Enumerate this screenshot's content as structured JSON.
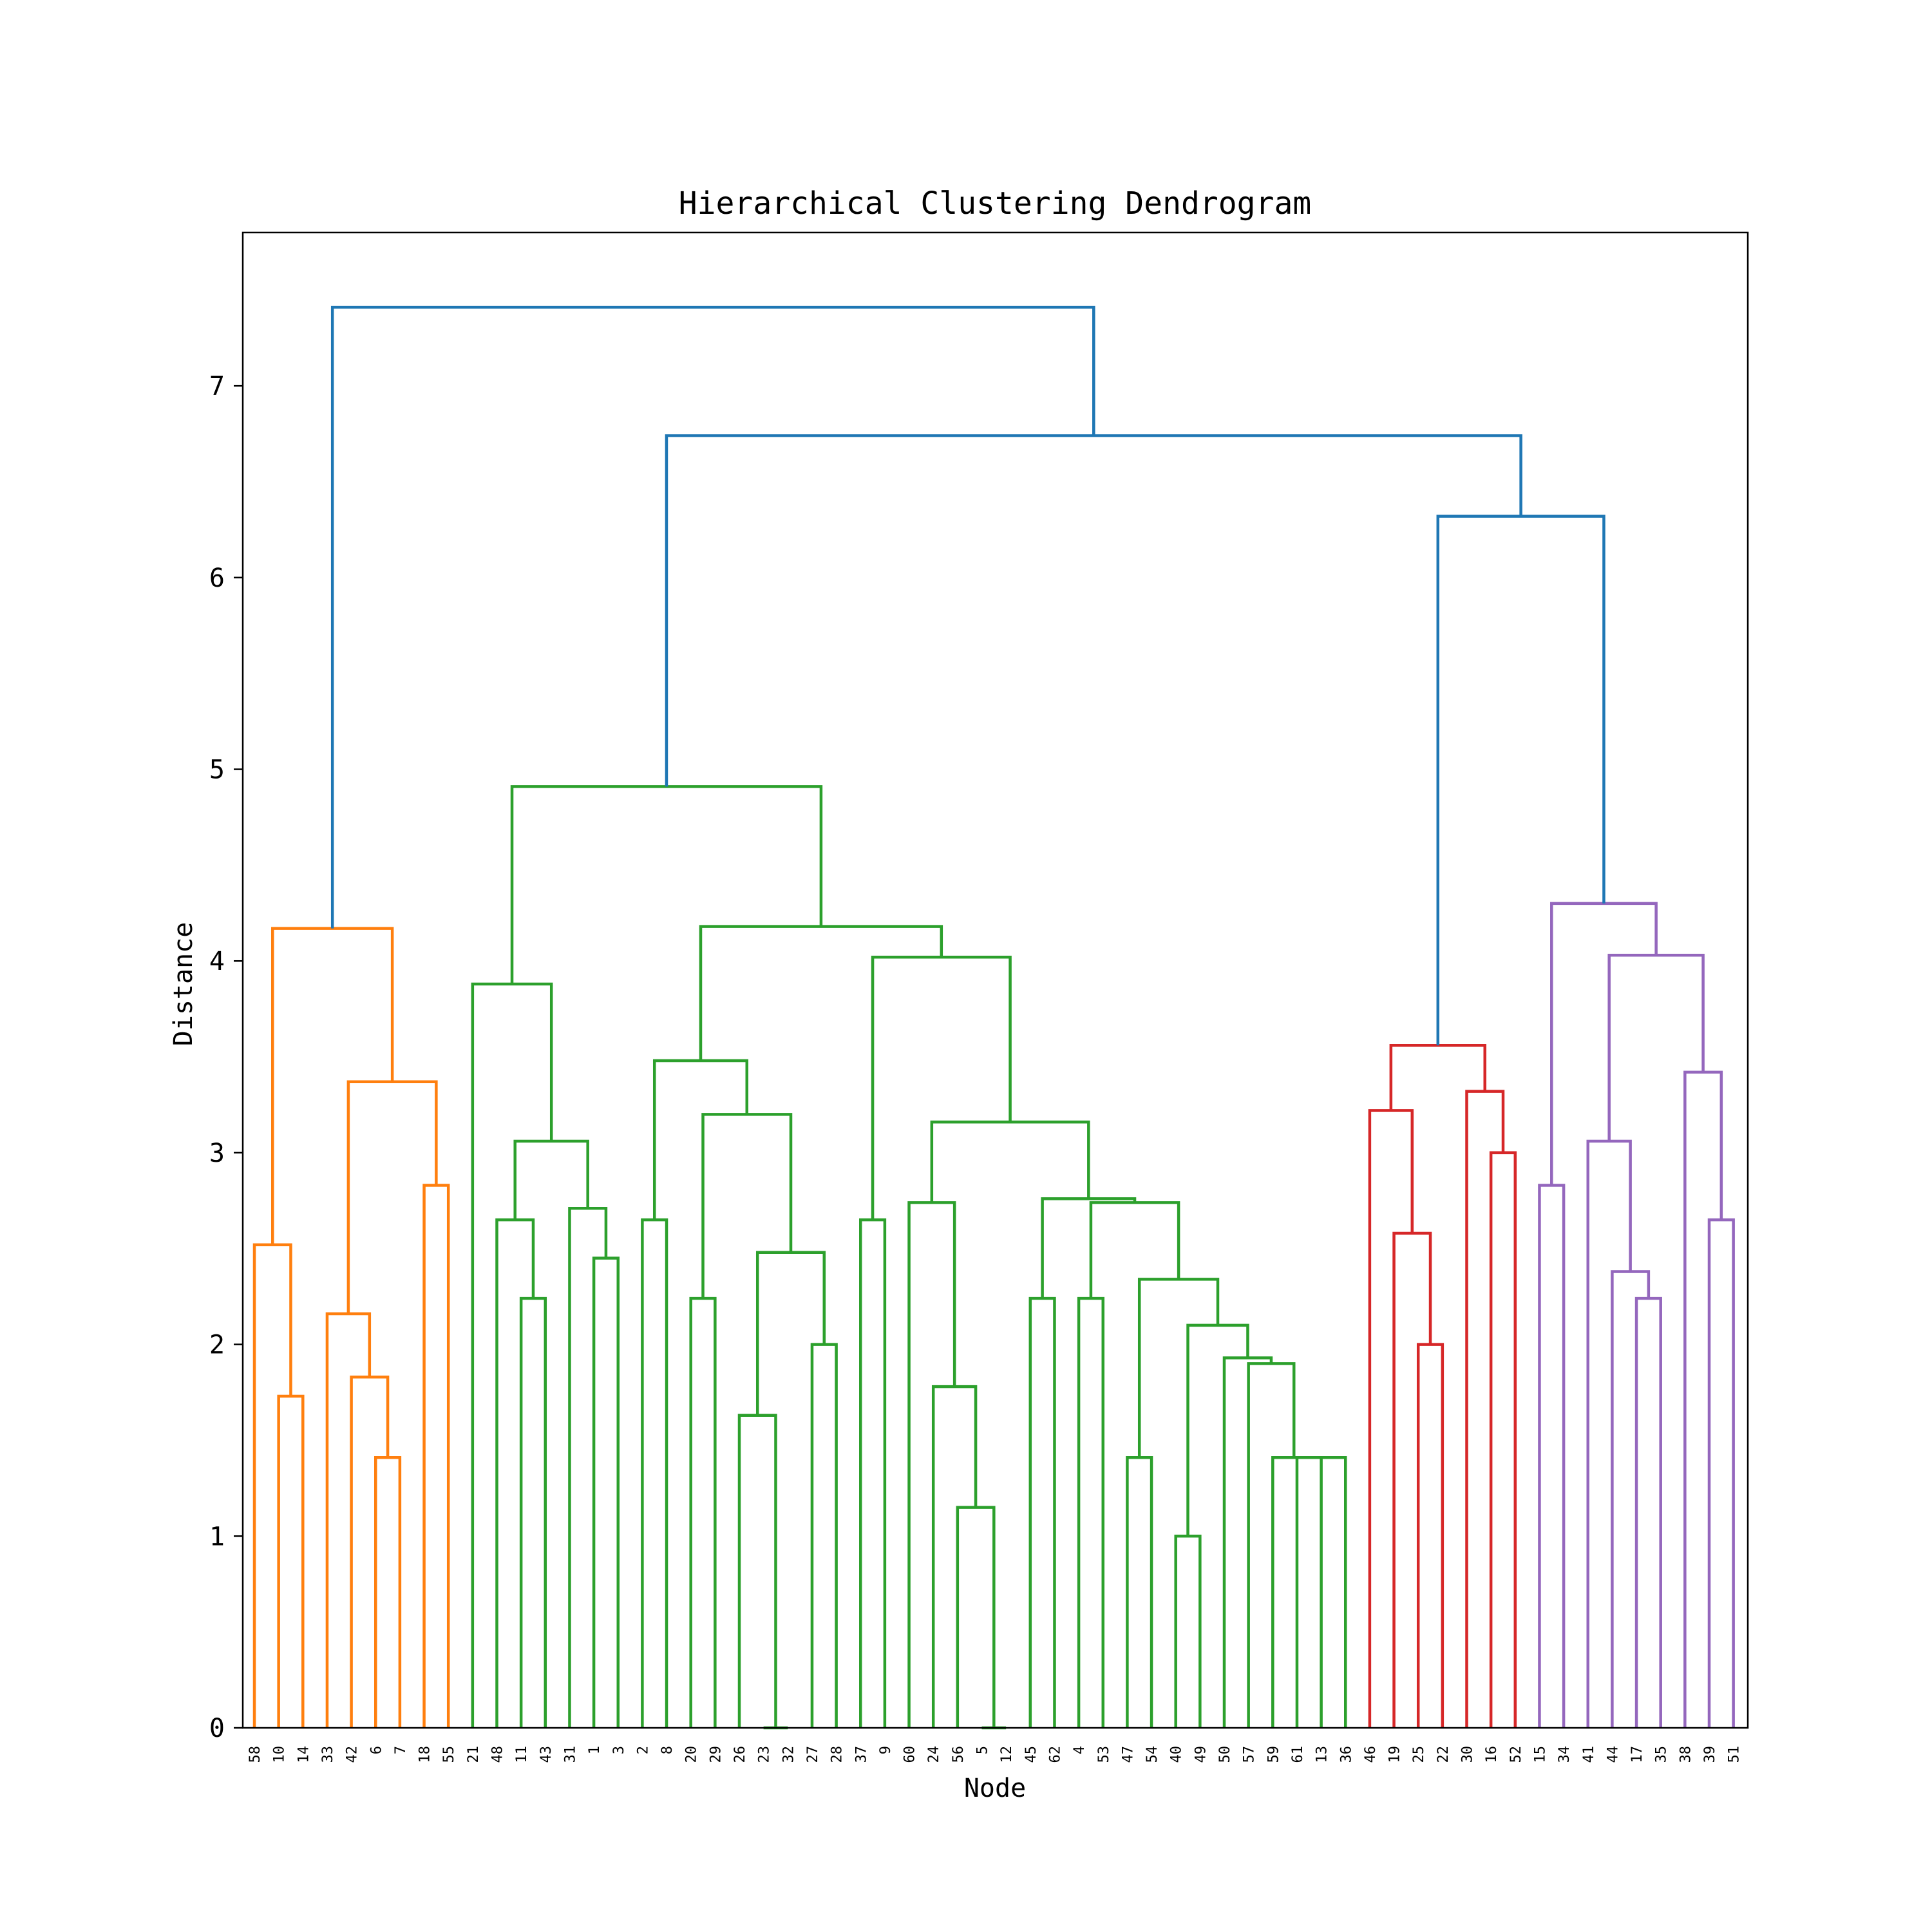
{
  "chart_data": {
    "type": "dendrogram",
    "title": "Hierarchical Clustering Dendrogram",
    "xlabel": "Node",
    "ylabel": "Distance",
    "ylim": [
      0,
      7.8
    ],
    "yticks": [
      0,
      1,
      2,
      3,
      4,
      5,
      6,
      7
    ],
    "leaves": [
      "58",
      "10",
      "14",
      "33",
      "42",
      "6",
      "7",
      "18",
      "55",
      "21",
      "48",
      "11",
      "43",
      "31",
      "1",
      "3",
      "2",
      "8",
      "20",
      "29",
      "26",
      "23",
      "32",
      "27",
      "28",
      "37",
      "9",
      "60",
      "24",
      "56",
      "5",
      "12",
      "45",
      "62",
      "4",
      "53",
      "47",
      "54",
      "40",
      "49",
      "50",
      "57",
      "59",
      "61",
      "13",
      "36",
      "46",
      "19",
      "25",
      "22",
      "30",
      "16",
      "52",
      "15",
      "34",
      "41",
      "44",
      "17",
      "35",
      "38",
      "39",
      "51"
    ],
    "colors": {
      "root": "#1f77b4",
      "orange": "#ff7f0e",
      "green": "#2ca02c",
      "red": "#d62728",
      "purple": "#9467bd"
    },
    "links": [
      {
        "left": 1,
        "right": 2,
        "distance": 1.73,
        "color": "orange"
      },
      {
        "left": 0,
        "right": "L1",
        "distance": 2.52,
        "color": "orange"
      },
      {
        "left": 5,
        "right": 6,
        "distance": 1.41,
        "color": "orange"
      },
      {
        "left": 4,
        "right": "L3",
        "distance": 1.83,
        "color": "orange"
      },
      {
        "left": 3,
        "right": "L4",
        "distance": 2.16,
        "color": "orange"
      },
      {
        "left": 7,
        "right": 8,
        "distance": 2.83,
        "color": "orange"
      },
      {
        "left": "L5",
        "right": "L6",
        "distance": 3.37,
        "color": "orange"
      },
      {
        "left": "L2",
        "right": "L7",
        "distance": 4.17,
        "color": "orange"
      },
      {
        "left": 11,
        "right": 12,
        "distance": 2.24,
        "color": "green"
      },
      {
        "left": 10,
        "right": "L9",
        "distance": 2.65,
        "color": "green"
      },
      {
        "left": 14,
        "right": 15,
        "distance": 2.45,
        "color": "green"
      },
      {
        "left": 13,
        "right": "L11",
        "distance": 2.71,
        "color": "green"
      },
      {
        "left": "L10",
        "right": "L12",
        "distance": 3.06,
        "color": "green"
      },
      {
        "left": 9,
        "right": "L13",
        "distance": 3.88,
        "color": "green"
      },
      {
        "left": 16,
        "right": 17,
        "distance": 2.65,
        "color": "green"
      },
      {
        "left": 18,
        "right": 19,
        "distance": 2.24,
        "color": "green"
      },
      {
        "left": 21,
        "right": 22,
        "distance": 0.0,
        "color": "green"
      },
      {
        "left": 20,
        "right": "L17",
        "distance": 1.63,
        "color": "green"
      },
      {
        "left": 23,
        "right": 24,
        "distance": 2.0,
        "color": "green"
      },
      {
        "left": "L18",
        "right": "L19",
        "distance": 2.48,
        "color": "green"
      },
      {
        "left": "L16",
        "right": "L20",
        "distance": 3.2,
        "color": "green"
      },
      {
        "left": "L15",
        "right": "L21",
        "distance": 3.48,
        "color": "green"
      },
      {
        "left": 25,
        "right": 26,
        "distance": 2.65,
        "color": "green"
      },
      {
        "left": 30,
        "right": 31,
        "distance": 0.0,
        "color": "green"
      },
      {
        "left": 29,
        "right": "L24",
        "distance": 1.15,
        "color": "green"
      },
      {
        "left": 28,
        "right": "L25",
        "distance": 1.78,
        "color": "green"
      },
      {
        "left": 27,
        "right": "L26",
        "distance": 2.74,
        "color": "green"
      },
      {
        "left": 32,
        "right": 33,
        "distance": 2.24,
        "color": "green"
      },
      {
        "left": 34,
        "right": 35,
        "distance": 2.24,
        "color": "green"
      },
      {
        "left": 36,
        "right": 37,
        "distance": 1.41,
        "color": "green"
      },
      {
        "left": 38,
        "right": 39,
        "distance": 1.0,
        "color": "green"
      },
      {
        "left": 44,
        "right": 45,
        "distance": 1.41,
        "color": "green"
      },
      {
        "left": 43,
        "right": "L32",
        "distance": 1.41,
        "color": "green"
      },
      {
        "left": 42,
        "right": "L33",
        "distance": 1.41,
        "color": "green"
      },
      {
        "left": 41,
        "right": "L34",
        "distance": 1.9,
        "color": "green"
      },
      {
        "left": 40,
        "right": "L35",
        "distance": 1.93,
        "color": "green"
      },
      {
        "left": "L31",
        "right": "L36",
        "distance": 2.1,
        "color": "green"
      },
      {
        "left": "L30",
        "right": "L37",
        "distance": 2.34,
        "color": "green"
      },
      {
        "left": "L29",
        "right": "L38",
        "distance": 2.74,
        "color": "green"
      },
      {
        "left": "L28",
        "right": "L39",
        "distance": 2.76,
        "color": "green"
      },
      {
        "left": "L27",
        "right": "L40",
        "distance": 3.16,
        "color": "green"
      },
      {
        "left": "L23",
        "right": "L41",
        "distance": 4.02,
        "color": "green"
      },
      {
        "left": "L22",
        "right": "L42",
        "distance": 4.18,
        "color": "green"
      },
      {
        "left": "L14",
        "right": "L43",
        "distance": 4.91,
        "color": "green"
      },
      {
        "left": 48,
        "right": 49,
        "distance": 2.0,
        "color": "red"
      },
      {
        "left": 47,
        "right": "L45",
        "distance": 2.58,
        "color": "red"
      },
      {
        "left": 46,
        "right": "L46",
        "distance": 3.22,
        "color": "red"
      },
      {
        "left": 51,
        "right": 52,
        "distance": 3.0,
        "color": "red"
      },
      {
        "left": 50,
        "right": "L48",
        "distance": 3.32,
        "color": "red"
      },
      {
        "left": "L47",
        "right": "L49",
        "distance": 3.56,
        "color": "red"
      },
      {
        "left": 53,
        "right": 54,
        "distance": 2.83,
        "color": "purple"
      },
      {
        "left": 57,
        "right": 58,
        "distance": 2.24,
        "color": "purple"
      },
      {
        "left": 56,
        "right": "L52",
        "distance": 2.38,
        "color": "purple"
      },
      {
        "left": 55,
        "right": "L53",
        "distance": 3.06,
        "color": "purple"
      },
      {
        "left": 60,
        "right": 61,
        "distance": 2.65,
        "color": "purple"
      },
      {
        "left": 59,
        "right": "L55",
        "distance": 3.42,
        "color": "purple"
      },
      {
        "left": "L54",
        "right": "L56",
        "distance": 4.03,
        "color": "purple"
      },
      {
        "left": "L51",
        "right": "L57",
        "distance": 4.3,
        "color": "purple"
      },
      {
        "left": "L50",
        "right": "L58",
        "distance": 6.32,
        "color": "root"
      },
      {
        "left": "L44",
        "right": "L59",
        "distance": 6.74,
        "color": "root"
      },
      {
        "left": "L8",
        "right": "L60",
        "distance": 7.41,
        "color": "root"
      }
    ]
  }
}
